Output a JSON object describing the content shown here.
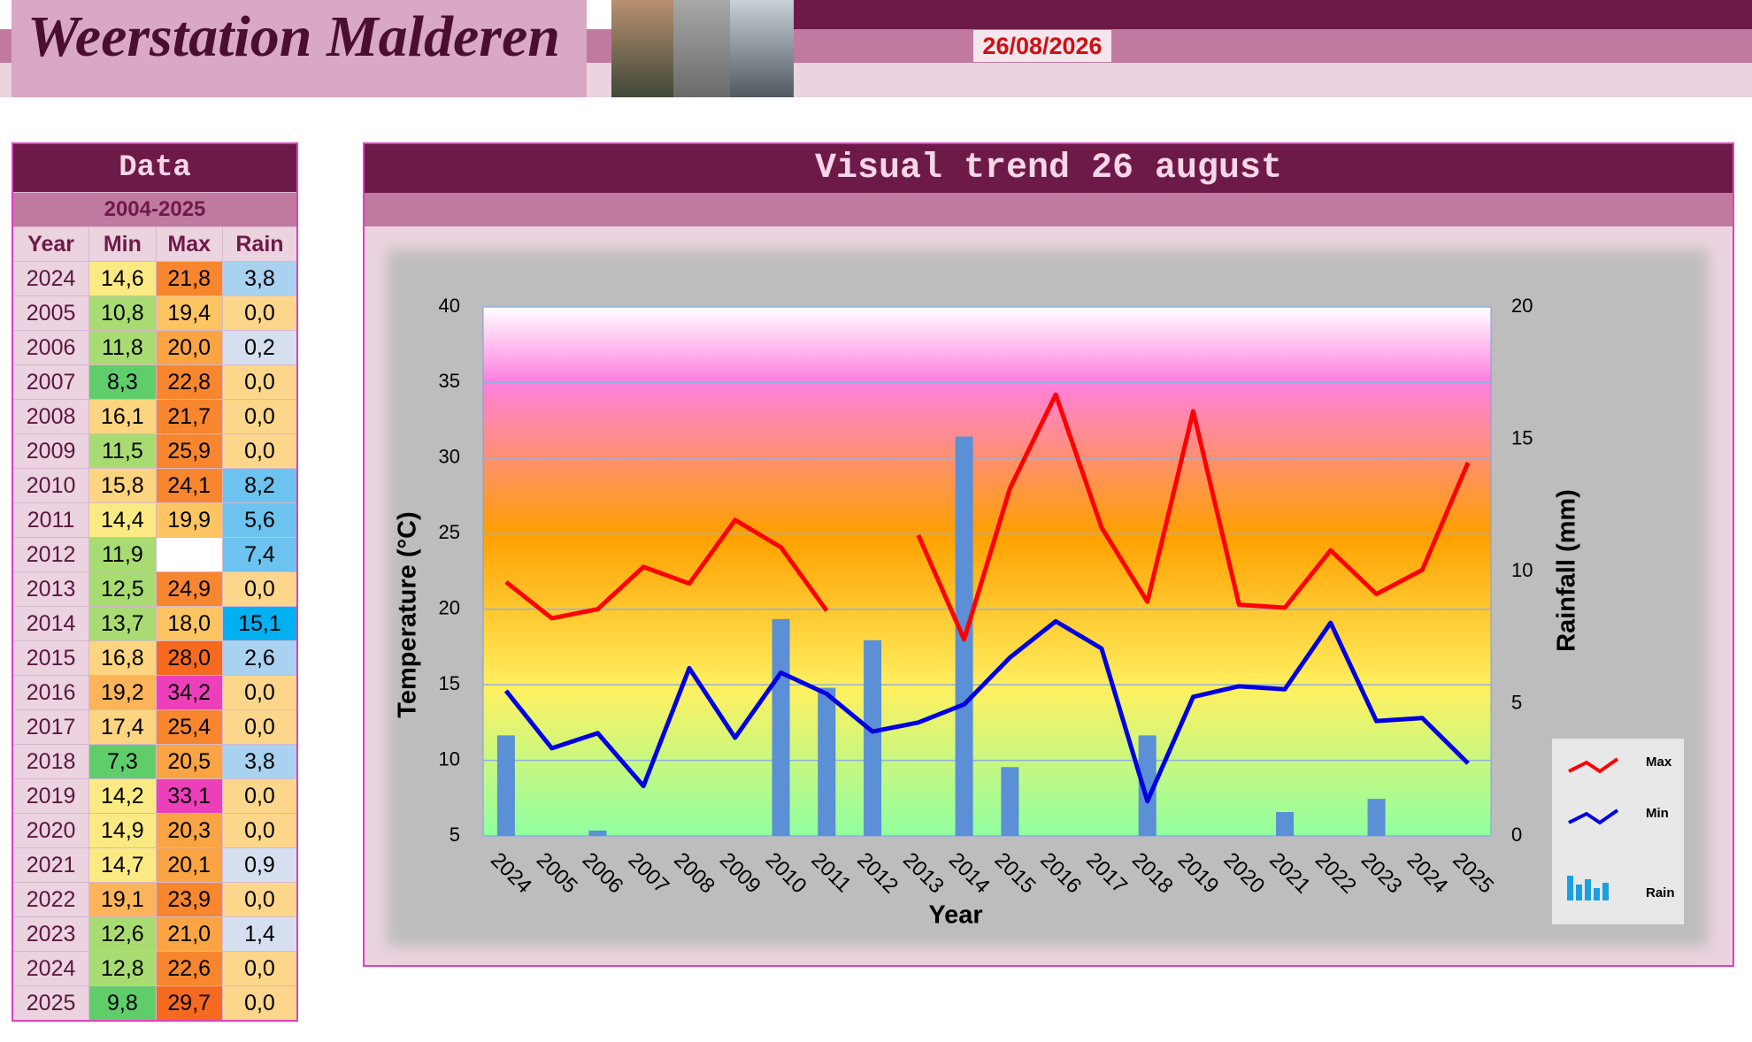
{
  "header": {
    "title": "Weerstation Malderen",
    "date": "26/08/2026"
  },
  "table": {
    "title": "Data",
    "subtitle": "2004-2025",
    "columns": [
      "Year",
      "Min",
      "Max",
      "Rain"
    ],
    "rows": [
      [
        "2024",
        "14,6",
        "21,8",
        "3,8"
      ],
      [
        "2005",
        "10,8",
        "19,4",
        "0,0"
      ],
      [
        "2006",
        "11,8",
        "20,0",
        "0,2"
      ],
      [
        "2007",
        "8,3",
        "22,8",
        "0,0"
      ],
      [
        "2008",
        "16,1",
        "21,7",
        "0,0"
      ],
      [
        "2009",
        "11,5",
        "25,9",
        "0,0"
      ],
      [
        "2010",
        "15,8",
        "24,1",
        "8,2"
      ],
      [
        "2011",
        "14,4",
        "19,9",
        "5,6"
      ],
      [
        "2012",
        "11,9",
        null,
        "7,4"
      ],
      [
        "2013",
        "12,5",
        "24,9",
        "0,0"
      ],
      [
        "2014",
        "13,7",
        "18,0",
        "15,1"
      ],
      [
        "2015",
        "16,8",
        "28,0",
        "2,6"
      ],
      [
        "2016",
        "19,2",
        "34,2",
        "0,0"
      ],
      [
        "2017",
        "17,4",
        "25,4",
        "0,0"
      ],
      [
        "2018",
        "7,3",
        "20,5",
        "3,8"
      ],
      [
        "2019",
        "14,2",
        "33,1",
        "0,0"
      ],
      [
        "2020",
        "14,9",
        "20,3",
        "0,0"
      ],
      [
        "2021",
        "14,7",
        "20,1",
        "0,9"
      ],
      [
        "2022",
        "19,1",
        "23,9",
        "0,0"
      ],
      [
        "2023",
        "12,6",
        "21,0",
        "1,4"
      ],
      [
        "2024",
        "12,8",
        "22,6",
        "0,0"
      ],
      [
        "2025",
        "9,8",
        "29,7",
        "0,0"
      ]
    ]
  },
  "chart_data": {
    "type": "line",
    "title": "Visual trend 26 august",
    "x_label": "Year",
    "y_label": "Temperature (°C)",
    "y2_label": "Rainfall (mm)",
    "categories": [
      "2024",
      "2005",
      "2006",
      "2007",
      "2008",
      "2009",
      "2010",
      "2011",
      "2012",
      "2013",
      "2014",
      "2015",
      "2016",
      "2017",
      "2018",
      "2019",
      "2020",
      "2021",
      "2022",
      "2023",
      "2024",
      "2025"
    ],
    "series": [
      {
        "name": "Max",
        "color": "#ff0000",
        "values": [
          21.8,
          19.4,
          20.0,
          22.8,
          21.7,
          25.9,
          24.1,
          19.9,
          null,
          24.9,
          18.0,
          28.0,
          34.2,
          25.4,
          20.5,
          33.1,
          20.3,
          20.1,
          23.9,
          21.0,
          22.6,
          29.7
        ]
      },
      {
        "name": "Min",
        "color": "#0000e0",
        "values": [
          14.6,
          10.8,
          11.8,
          8.3,
          16.1,
          11.5,
          15.8,
          14.4,
          11.9,
          12.5,
          13.7,
          16.8,
          19.2,
          17.4,
          7.3,
          14.2,
          14.9,
          14.7,
          19.1,
          12.6,
          12.8,
          9.8
        ]
      },
      {
        "name": "Rain",
        "type": "bar",
        "axis": "y2",
        "color": "#5b8fd6",
        "values": [
          3.8,
          0.0,
          0.2,
          0.0,
          0.0,
          0.0,
          8.2,
          5.6,
          7.4,
          0.0,
          15.1,
          2.6,
          0.0,
          0.0,
          3.8,
          0.0,
          0.0,
          0.9,
          0.0,
          1.4,
          0.0,
          0.0
        ]
      }
    ],
    "ylim": [
      5,
      40
    ],
    "yticks": [
      5,
      10,
      15,
      20,
      25,
      30,
      35,
      40
    ],
    "y2lim": [
      0,
      20
    ],
    "y2ticks": [
      0,
      5,
      10,
      15,
      20
    ],
    "grid": true,
    "legend": "right"
  }
}
